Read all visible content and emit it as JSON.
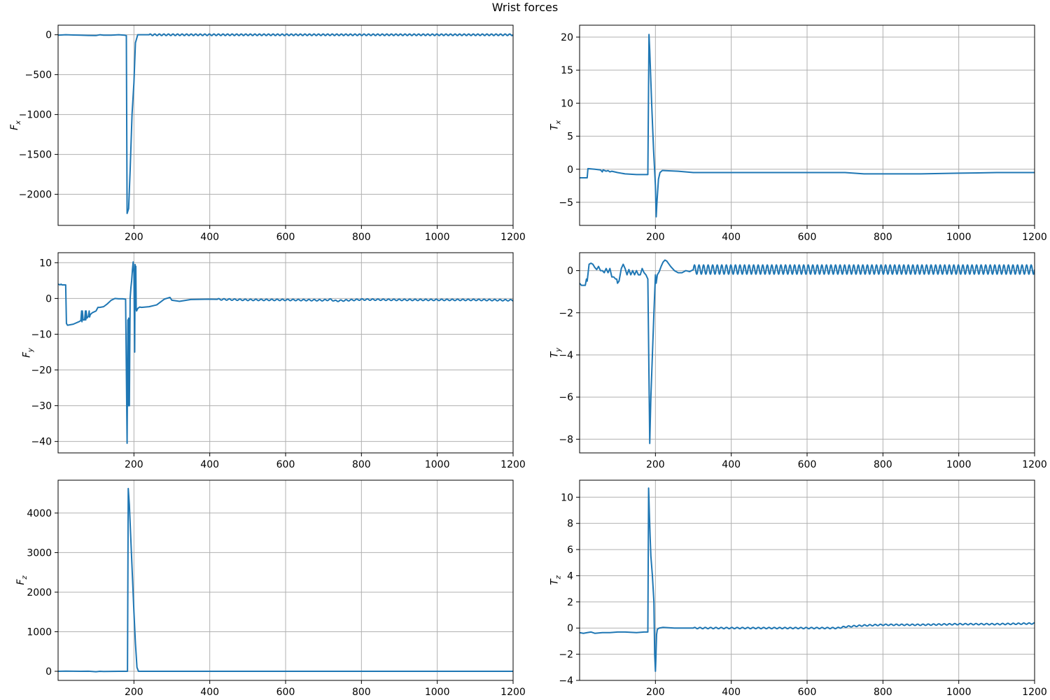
{
  "figure": {
    "title": "Wrist forces",
    "series_color": "#1f77b4",
    "grid_color": "#b0b0b0"
  },
  "chart_data": [
    {
      "id": "fx",
      "type": "line",
      "ylabel": "F",
      "ylabel_sub": "x",
      "xlim": [
        0,
        1200
      ],
      "ylim": [
        -2390,
        120
      ],
      "xticks": [
        200,
        400,
        600,
        800,
        1000,
        1200
      ],
      "xtick_labels": [
        "200",
        "400",
        "600",
        "800",
        "1000",
        "1200"
      ],
      "yticks": [
        0,
        -500,
        -1000,
        -1500,
        -2000
      ],
      "ytick_labels": [
        "0",
        "−500",
        "−1000",
        "−1500",
        "−2000"
      ],
      "grid": true,
      "series": [
        {
          "x": [
            0,
            20,
            40,
            60,
            80,
            100,
            110,
            120,
            140,
            160,
            175,
            180,
            182,
            186,
            190,
            195,
            200,
            204,
            210,
            220,
            1200
          ],
          "y": [
            -5,
            0,
            -3,
            -5,
            -8,
            -10,
            0,
            -5,
            -5,
            0,
            -5,
            -10,
            -2240,
            -2180,
            -1700,
            -1000,
            -600,
            -100,
            0,
            0,
            0
          ]
        }
      ],
      "oscillation": {
        "start": 240,
        "amplitude": 10,
        "period": 12
      }
    },
    {
      "id": "tx",
      "type": "line",
      "ylabel": "T",
      "ylabel_sub": "x",
      "xlim": [
        0,
        1200
      ],
      "ylim": [
        -8.5,
        21.8
      ],
      "xticks": [
        200,
        400,
        600,
        800,
        1000,
        1200
      ],
      "xtick_labels": [
        "200",
        "400",
        "600",
        "800",
        "1000",
        "1200"
      ],
      "yticks": [
        20,
        15,
        10,
        5,
        0,
        -5
      ],
      "ytick_labels": [
        "20",
        "15",
        "10",
        "5",
        "0",
        "−5"
      ],
      "grid": true,
      "series": [
        {
          "x": [
            0,
            20,
            22,
            40,
            55,
            60,
            62,
            70,
            75,
            80,
            85,
            100,
            120,
            150,
            165,
            170,
            180,
            183,
            185,
            190,
            195,
            200,
            202,
            204,
            208,
            212,
            218,
            220,
            260,
            300,
            400,
            500,
            600,
            700,
            750,
            800,
            900,
            1000,
            1100,
            1200
          ],
          "y": [
            -1.3,
            -1.3,
            0.1,
            0.0,
            -0.1,
            -0.4,
            -0.1,
            -0.3,
            -0.2,
            -0.4,
            -0.3,
            -0.5,
            -0.7,
            -0.8,
            -0.8,
            -0.8,
            -0.8,
            20.4,
            18.0,
            10.0,
            3.0,
            -2.5,
            -7.2,
            -5.0,
            -1.5,
            -0.5,
            -0.2,
            -0.2,
            -0.3,
            -0.5,
            -0.5,
            -0.5,
            -0.5,
            -0.5,
            -0.7,
            -0.7,
            -0.7,
            -0.6,
            -0.5,
            -0.5
          ]
        }
      ]
    },
    {
      "id": "fy",
      "type": "line",
      "ylabel": "F",
      "ylabel_sub": "y",
      "xlim": [
        0,
        1200
      ],
      "ylim": [
        -43.2,
        12.8
      ],
      "xticks": [
        200,
        400,
        600,
        800,
        1000,
        1200
      ],
      "xtick_labels": [
        "200",
        "400",
        "600",
        "800",
        "1000",
        "1200"
      ],
      "yticks": [
        10,
        0,
        -10,
        -20,
        -30,
        -40
      ],
      "ytick_labels": [
        "10",
        "0",
        "−10",
        "−20",
        "−30",
        "−40"
      ],
      "grid": true,
      "series": [
        {
          "x": [
            0,
            5,
            8,
            10,
            20,
            22,
            25,
            40,
            55,
            60,
            62,
            63,
            64,
            66,
            70,
            72,
            73,
            74,
            76,
            80,
            82,
            83,
            85,
            90,
            100,
            105,
            110,
            120,
            130,
            140,
            150,
            160,
            170,
            178,
            182,
            184,
            185,
            186,
            188,
            190,
            192,
            194,
            196,
            198,
            200,
            202,
            203,
            204,
            205,
            206,
            207,
            210,
            215,
            220,
            240,
            260,
            280,
            295,
            300,
            320,
            350,
            400,
            500,
            600,
            700,
            720,
            730,
            800,
            900,
            1000,
            1100,
            1200
          ],
          "y": [
            4,
            3.8,
            4.0,
            3.8,
            3.8,
            -7,
            -7.5,
            -7.2,
            -6.5,
            -6.2,
            -3.5,
            -6.5,
            -3.5,
            -6,
            -6,
            -3.5,
            -6,
            -3.5,
            -5.5,
            -5,
            -3.5,
            -5.2,
            -4.5,
            -4,
            -3.5,
            -2.5,
            -2.5,
            -2.3,
            -1.5,
            -0.5,
            0.0,
            -0.1,
            -0.1,
            -0.2,
            -40.5,
            -6.0,
            -30.0,
            -5.5,
            -30.0,
            0.0,
            3.0,
            5.0,
            8.0,
            10.2,
            7.0,
            -15.0,
            9.5,
            -3.0,
            9.0,
            -3.0,
            -3.5,
            -2.8,
            -2.4,
            -2.5,
            -2.3,
            -1.8,
            -0.2,
            0.3,
            -0.5,
            -0.8,
            -0.3,
            -0.2,
            -0.4,
            -0.4,
            -0.5,
            -0.3,
            -0.7,
            -0.3,
            -0.4,
            -0.4,
            -0.4,
            -0.5
          ]
        }
      ],
      "oscillation": {
        "start": 420,
        "amplitude": 0.2,
        "period": 14
      }
    },
    {
      "id": "ty",
      "type": "line",
      "ylabel": "T",
      "ylabel_sub": "y",
      "xlim": [
        0,
        1200
      ],
      "ylim": [
        -8.65,
        0.85
      ],
      "xticks": [
        200,
        400,
        600,
        800,
        1000,
        1200
      ],
      "xtick_labels": [
        "200",
        "400",
        "600",
        "800",
        "1000",
        "1200"
      ],
      "yticks": [
        0,
        -2,
        -4,
        -6,
        -8
      ],
      "ytick_labels": [
        "0",
        "−2",
        "−4",
        "−6",
        "−8"
      ],
      "grid": true,
      "series": [
        {
          "x": [
            0,
            5,
            10,
            15,
            18,
            20,
            25,
            30,
            35,
            40,
            45,
            50,
            55,
            60,
            65,
            70,
            75,
            80,
            85,
            90,
            95,
            98,
            100,
            104,
            110,
            115,
            120,
            125,
            130,
            135,
            140,
            145,
            150,
            155,
            160,
            165,
            170,
            175,
            180,
            185,
            188,
            192,
            196,
            200,
            202,
            205,
            210,
            215,
            220,
            225,
            230,
            240,
            250,
            260,
            270,
            280,
            290,
            300
          ],
          "y": [
            -0.6,
            -0.7,
            -0.7,
            -0.7,
            -0.4,
            -0.5,
            0.3,
            0.35,
            0.3,
            0.15,
            0.05,
            0.2,
            0.0,
            0.0,
            -0.1,
            0.1,
            -0.1,
            0.1,
            -0.3,
            -0.3,
            -0.4,
            -0.4,
            -0.6,
            -0.5,
            0.1,
            0.3,
            0.1,
            -0.2,
            0.05,
            -0.2,
            0.0,
            -0.2,
            0.0,
            -0.2,
            -0.2,
            0.1,
            -0.1,
            -0.2,
            -0.4,
            -8.2,
            -6.0,
            -4.0,
            -2.0,
            -0.2,
            -0.6,
            -0.2,
            -0.05,
            0.2,
            0.4,
            0.5,
            0.45,
            0.2,
            0.0,
            -0.1,
            -0.1,
            0.0,
            -0.05,
            -0.05
          ]
        }
      ],
      "oscillation": {
        "start": 300,
        "amplitude": 0.22,
        "period": 12,
        "center": 0.05
      }
    },
    {
      "id": "fz",
      "type": "line",
      "ylabel": "F",
      "ylabel_sub": "z",
      "xlim": [
        0,
        1200
      ],
      "ylim": [
        -230,
        4830
      ],
      "xticks": [
        200,
        400,
        600,
        800,
        1000,
        1200
      ],
      "xtick_labels": [
        "200",
        "400",
        "600",
        "800",
        "1000",
        "1200"
      ],
      "yticks": [
        4000,
        3000,
        2000,
        1000,
        0
      ],
      "ytick_labels": [
        "4000",
        "3000",
        "2000",
        "1000",
        "0"
      ],
      "grid": true,
      "series": [
        {
          "x": [
            0,
            20,
            60,
            80,
            100,
            110,
            120,
            160,
            175,
            180,
            183,
            185,
            188,
            192,
            196,
            200,
            204,
            208,
            212,
            220,
            1200
          ],
          "y": [
            0,
            5,
            0,
            2,
            -10,
            0,
            -5,
            0,
            0,
            0,
            0,
            4620,
            4200,
            3300,
            2400,
            1500,
            700,
            100,
            0,
            0,
            0
          ]
        }
      ]
    },
    {
      "id": "tz",
      "type": "line",
      "ylabel": "T",
      "ylabel_sub": "z",
      "xlim": [
        0,
        1200
      ],
      "ylim": [
        -4.0,
        11.3
      ],
      "xticks": [
        200,
        400,
        600,
        800,
        1000,
        1200
      ],
      "xtick_labels": [
        "200",
        "400",
        "600",
        "800",
        "1000",
        "1200"
      ],
      "yticks": [
        10,
        8,
        6,
        4,
        2,
        0,
        -2,
        -4
      ],
      "ytick_labels": [
        "10",
        "8",
        "6",
        "4",
        "2",
        "0",
        "−2",
        "−4"
      ],
      "grid": true,
      "series": [
        {
          "x": [
            0,
            10,
            20,
            30,
            40,
            60,
            80,
            100,
            120,
            150,
            170,
            180,
            182,
            184,
            186,
            188,
            192,
            196,
            198,
            200,
            201,
            203,
            205,
            210,
            220,
            250,
            300,
            400,
            500,
            600,
            680,
            700,
            750,
            800,
            900,
            1000,
            1100,
            1200
          ],
          "y": [
            -0.35,
            -0.4,
            -0.35,
            -0.3,
            -0.4,
            -0.35,
            -0.35,
            -0.3,
            -0.3,
            -0.35,
            -0.3,
            -0.3,
            10.7,
            8.8,
            7.0,
            5.5,
            4.0,
            2.0,
            -2.0,
            -3.3,
            -2.5,
            -0.5,
            -0.1,
            0.0,
            0.05,
            0.0,
            0.0,
            0.0,
            0.0,
            0.0,
            0.0,
            0.1,
            0.2,
            0.25,
            0.25,
            0.3,
            0.3,
            0.35
          ]
        }
      ],
      "oscillation": {
        "start": 300,
        "amplitude": 0.05,
        "period": 14
      }
    }
  ]
}
